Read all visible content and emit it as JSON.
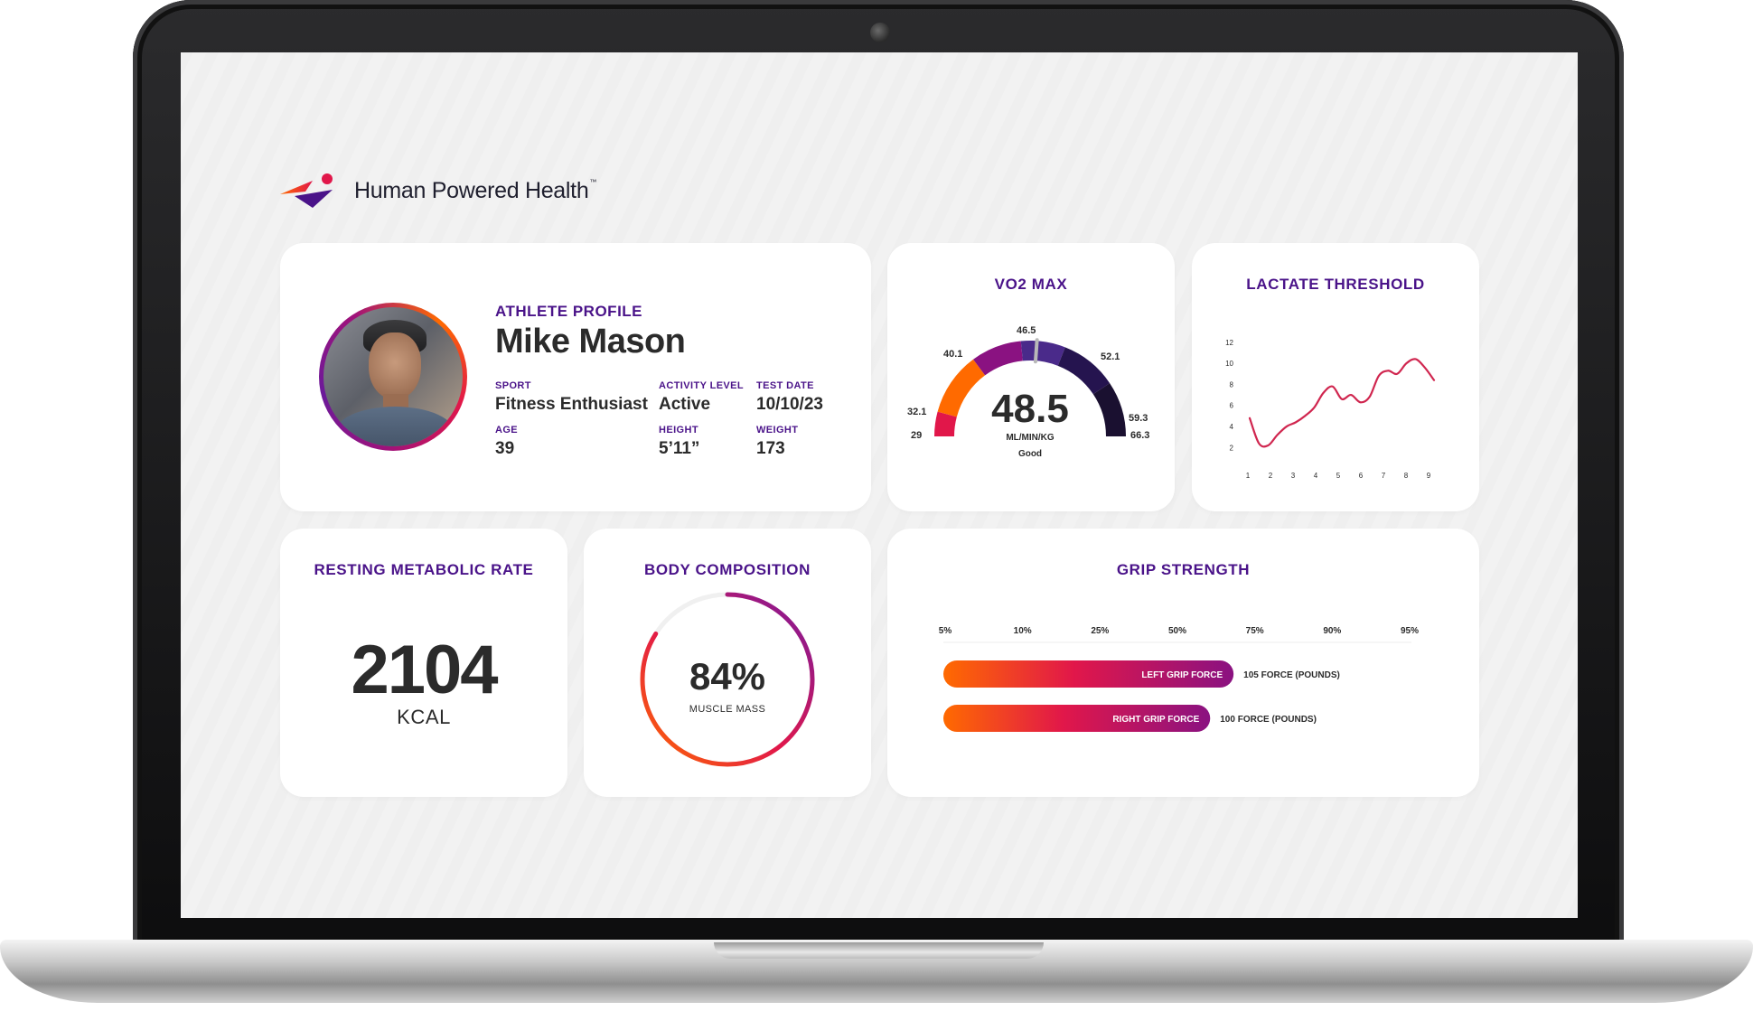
{
  "brand": {
    "name": "Human Powered Health",
    "trademark": "™"
  },
  "profile": {
    "heading": "ATHLETE PROFILE",
    "name": "Mike Mason",
    "sport_label": "SPORT",
    "sport": "Fitness Enthusiast",
    "activity_label": "ACTIVITY LEVEL",
    "activity": "Active",
    "test_date_label": "TEST DATE",
    "test_date": "10/10/23",
    "age_label": "AGE",
    "age": "39",
    "height_label": "HEIGHT",
    "height": "5’11”",
    "weight_label": "WEIGHT",
    "weight": "173"
  },
  "vo2": {
    "title": "VO2 MAX",
    "value": "48.5",
    "unit": "ML/MIN/KG",
    "rating": "Good",
    "ticks": [
      "29",
      "32.1",
      "40.1",
      "46.5",
      "52.1",
      "59.3",
      "66.3"
    ],
    "value_num": 48.5,
    "min": 29,
    "max": 66.3
  },
  "lactate": {
    "title": "LACTATE THRESHOLD",
    "chart_data": {
      "type": "line",
      "x_ticks": [
        "1",
        "2",
        "3",
        "4",
        "5",
        "6",
        "7",
        "8",
        "9"
      ],
      "y_ticks": [
        "2",
        "4",
        "6",
        "8",
        "10",
        "12"
      ],
      "xlim": [
        1,
        9
      ],
      "ylim": [
        1,
        12.5
      ],
      "series": [
        {
          "x": [
            1,
            1.4,
            1.8,
            2.2,
            2.6,
            3.0,
            3.4,
            3.8,
            4.2,
            4.6,
            5.0,
            5.4,
            5.8,
            6.2,
            6.6,
            7.0,
            7.4,
            7.8,
            8.2,
            8.6,
            9.0
          ],
          "y": [
            4.8,
            2.4,
            2.2,
            3.2,
            4.0,
            4.4,
            5.0,
            5.8,
            7.2,
            7.8,
            6.6,
            7.0,
            6.3,
            6.8,
            8.8,
            9.3,
            9.0,
            10.0,
            10.4,
            9.6,
            8.4
          ],
          "color": "#d0264f"
        }
      ]
    }
  },
  "rmr": {
    "title": "RESTING METABOLIC RATE",
    "value": "2104",
    "unit": "KCAL"
  },
  "body": {
    "title": "BODY COMPOSITION",
    "value": "84%",
    "label": "MUSCLE MASS",
    "fraction": 0.84
  },
  "grip": {
    "title": "GRIP STRENGTH",
    "percentiles": [
      "5%",
      "10%",
      "25%",
      "50%",
      "75%",
      "90%",
      "95%"
    ],
    "bars": [
      {
        "label": "LEFT GRIP FORCE",
        "value_text": "105 FORCE (POUNDS)",
        "position": 0.62
      },
      {
        "label": "RIGHT GRIP FORCE",
        "value_text": "100 FORCE (POUNDS)",
        "position": 0.57
      }
    ]
  },
  "colors": {
    "accent": "#4a1389",
    "orange": "#ff6a00",
    "magenta": "#a0127a",
    "red": "#e1174a",
    "navy": "#25144f"
  }
}
